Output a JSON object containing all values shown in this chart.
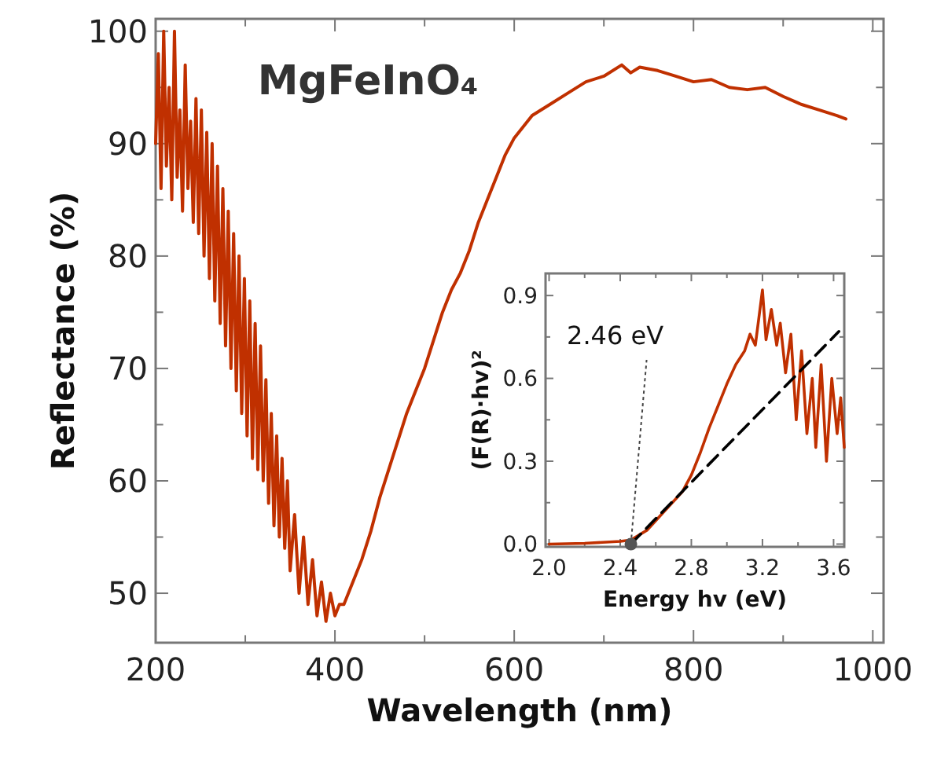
{
  "chart_data": [
    {
      "type": "line",
      "title": "MgFeInO₄",
      "xlabel": "Wavelength (nm)",
      "ylabel": "Reflectance (%)",
      "xlim": [
        200,
        1012
      ],
      "ylim": [
        45.6,
        101.1
      ],
      "xticks": [
        200,
        {
          "value": 300,
          "label": null
        },
        400,
        {
          "value": 500,
          "label": null
        },
        600,
        {
          "value": 700,
          "label": null
        },
        800,
        {
          "value": 900,
          "label": null
        },
        1000
      ],
      "yticks": [
        50,
        {
          "value": 55,
          "label": null
        },
        60,
        {
          "value": 65,
          "label": null
        },
        70,
        {
          "value": 75,
          "label": null
        },
        80,
        {
          "value": 85,
          "label": null
        },
        90,
        {
          "value": 95,
          "label": null
        },
        100
      ],
      "grid": false,
      "marker": "none",
      "line_style": "solid",
      "series": [
        {
          "color": "#c03000",
          "x": [
            200,
            203,
            206,
            209,
            212,
            215,
            218,
            221,
            224,
            227,
            230,
            233,
            236,
            239,
            242,
            245,
            248,
            251,
            254,
            257,
            260,
            263,
            266,
            269,
            272,
            275,
            278,
            281,
            284,
            287,
            290,
            293,
            296,
            299,
            302,
            305,
            308,
            311,
            314,
            317,
            320,
            323,
            326,
            329,
            332,
            335,
            338,
            341,
            344,
            347,
            350,
            355,
            360,
            365,
            370,
            375,
            380,
            385,
            390,
            395,
            400,
            405,
            410,
            420,
            430,
            440,
            450,
            460,
            470,
            480,
            490,
            500,
            510,
            520,
            530,
            540,
            550,
            560,
            570,
            580,
            590,
            600,
            620,
            640,
            660,
            680,
            700,
            720,
            730,
            740,
            760,
            780,
            800,
            820,
            840,
            860,
            880,
            900,
            920,
            940,
            960,
            970
          ],
          "values": [
            90,
            98,
            86,
            100,
            88,
            95,
            85,
            100,
            87,
            93,
            84,
            97,
            86,
            92,
            83,
            94,
            82,
            93,
            80,
            91,
            78,
            90,
            76,
            88,
            74,
            86,
            72,
            84,
            70,
            82,
            68,
            80,
            66,
            78,
            64,
            76,
            62,
            74,
            61,
            72,
            60,
            69,
            58,
            66,
            56,
            64,
            55,
            62,
            54,
            60,
            52,
            57,
            50,
            55,
            49,
            53,
            48,
            51,
            47.5,
            50,
            48,
            49,
            49,
            51,
            53,
            55.5,
            58.5,
            61,
            63.5,
            66,
            68,
            70,
            72.5,
            75,
            77,
            78.5,
            80.5,
            83,
            85,
            87,
            89,
            90.5,
            92.5,
            93.5,
            94.5,
            95.5,
            96,
            97,
            96.3,
            96.8,
            96.5,
            96,
            95.5,
            95.7,
            95,
            94.8,
            95,
            94.2,
            93.5,
            93,
            92.5,
            92.2
          ]
        }
      ]
    },
    {
      "type": "line",
      "xlabel": "Energy hv (eV)",
      "ylabel": "(F(R)·hv)²",
      "xlim": [
        1.98,
        3.66
      ],
      "ylim": [
        -0.01,
        0.98
      ],
      "xticks": [
        {
          "value": 2,
          "label": "2.0"
        },
        {
          "value": 2.2,
          "label": null
        },
        {
          "value": 2.4,
          "label": "2.4"
        },
        {
          "value": 2.6,
          "label": null
        },
        {
          "value": 2.8,
          "label": "2.8"
        },
        {
          "value": 3,
          "label": null
        },
        {
          "value": 3.2,
          "label": "3.2"
        },
        {
          "value": 3.4,
          "label": null
        },
        {
          "value": 3.6,
          "label": "3.6"
        }
      ],
      "yticks": [
        {
          "value": 0,
          "label": "0.0"
        },
        {
          "value": 0.15,
          "label": null
        },
        {
          "value": 0.3,
          "label": "0.3"
        },
        {
          "value": 0.45,
          "label": null
        },
        {
          "value": 0.6,
          "label": "0.6"
        },
        {
          "value": 0.75,
          "label": null
        },
        {
          "value": 0.9,
          "label": "0.9"
        }
      ],
      "grid": false,
      "annotations": [
        {
          "text": "2.46 eV",
          "x": 2.46,
          "y": 0
        }
      ],
      "series": [
        {
          "color": "#c03000",
          "x": [
            2.0,
            2.2,
            2.4,
            2.46,
            2.55,
            2.65,
            2.75,
            2.8,
            2.85,
            2.9,
            2.95,
            3.0,
            3.05,
            3.1,
            3.13,
            3.16,
            3.2,
            3.22,
            3.25,
            3.28,
            3.3,
            3.33,
            3.36,
            3.39,
            3.42,
            3.45,
            3.48,
            3.5,
            3.53,
            3.56,
            3.59,
            3.62,
            3.64,
            3.66
          ],
          "values": [
            0,
            0.003,
            0.01,
            0.015,
            0.05,
            0.12,
            0.19,
            0.25,
            0.33,
            0.42,
            0.5,
            0.58,
            0.65,
            0.7,
            0.76,
            0.72,
            0.92,
            0.74,
            0.85,
            0.72,
            0.8,
            0.62,
            0.76,
            0.45,
            0.7,
            0.4,
            0.6,
            0.35,
            0.65,
            0.3,
            0.6,
            0.4,
            0.53,
            0.35
          ]
        },
        {
          "type": "line",
          "color": "#000000",
          "line_style": "dashed",
          "x": [
            2.46,
            3.63
          ],
          "values": [
            0,
            0.77
          ]
        }
      ]
    }
  ]
}
